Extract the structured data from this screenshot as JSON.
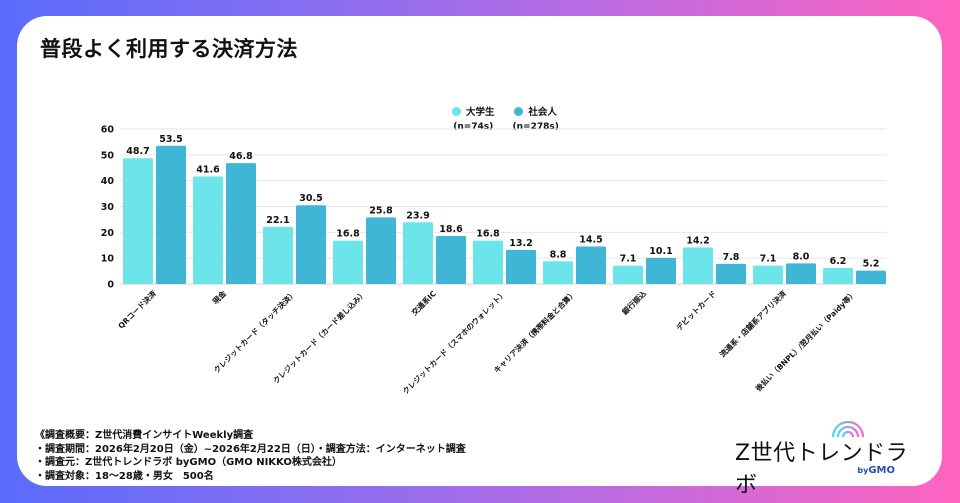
{
  "title": "普段よく利用する決済方法",
  "colors": {
    "student": "#6ce5ea",
    "worker": "#40b6d6",
    "grid": "#e6e6e6",
    "axis": "#d0d0d0"
  },
  "chart_data": {
    "type": "bar",
    "title": "普段よく利用する決済方法",
    "xlabel": "",
    "ylabel": "",
    "ylim": [
      0,
      60
    ],
    "yticks": [
      0,
      10,
      20,
      30,
      40,
      50,
      60
    ],
    "grid": true,
    "legend_position": "top-center",
    "categories": [
      "QRコード決済",
      "現金",
      "クレジットカード（タッチ決済）",
      "クレジットカード（カード差し込み）",
      "交通系IC",
      "クレジットカード（スマホのウォレット）",
      "キャリア決済（携帯料金と合算）",
      "銀行振込",
      "デビットカード",
      "流通系・店舗系アプリ決済",
      "後払い（BNPL）/翌月払い（Paidy等）"
    ],
    "series": [
      {
        "name": "大学生",
        "n_label": "(n=74s)",
        "values": [
          48.7,
          41.6,
          22.1,
          16.8,
          23.9,
          16.8,
          8.8,
          7.1,
          14.2,
          7.1,
          6.2
        ]
      },
      {
        "name": "社会人",
        "n_label": "(n=278s)",
        "values": [
          53.5,
          46.8,
          30.5,
          25.8,
          18.6,
          13.2,
          14.5,
          10.1,
          7.8,
          8.0,
          5.2
        ]
      }
    ]
  },
  "notes": [
    "《調査概要：Z世代消費インサイトWeekly調査",
    "・調査期間：2026年2月20日（金）~2026年2月22日（日）・調査方法：インターネット調査",
    "・調査元：Z世代トレンドラボ byGMO（GMO NIKKO株式会社）",
    "・調査対象：18〜28歳・男女　500名"
  ],
  "logo": {
    "name": "Z世代トレンドラボ",
    "by": "by",
    "brand": "GMO"
  }
}
